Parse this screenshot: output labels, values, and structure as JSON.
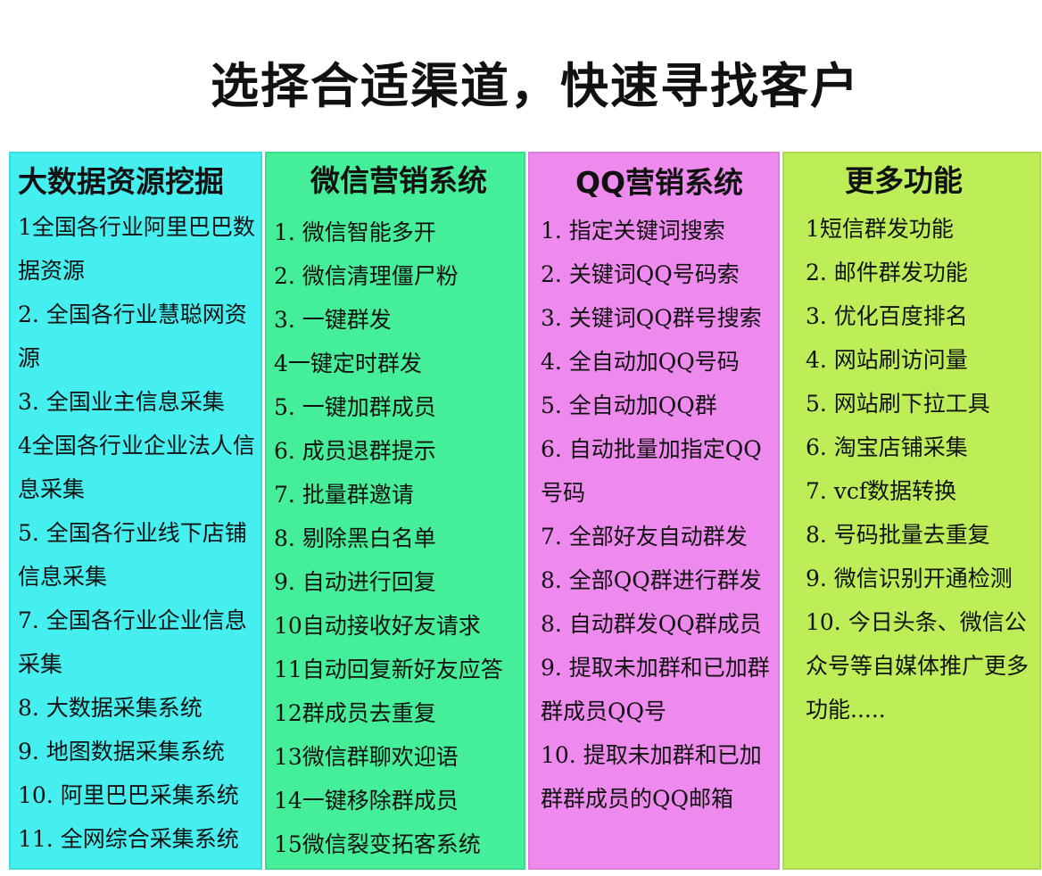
{
  "title": "选择合适渠道，快速寻找客户",
  "columns": [
    {
      "heading": "大数据资源挖掘",
      "color": "#45eff0",
      "items": [
        "1全国各行业阿里巴巴数据资源",
        "2. 全国各行业慧聪网资源",
        "3. 全国业主信息采集",
        "4全国各行业企业法人信息采集",
        "5. 全国各行业线下店铺信息采集",
        "7. 全国各行业企业信息采集",
        "8. 大数据采集系统",
        "9. 地图数据采集系统",
        "10. 阿里巴巴采集系统",
        "11. 全网综合采集系统"
      ]
    },
    {
      "heading": "微信营销系统",
      "color": "#45ee98",
      "items": [
        "1. 微信智能多开",
        "2. 微信清理僵尸粉",
        "3. 一键群发",
        "4一键定时群发",
        "5. 一键加群成员",
        "6. 成员退群提示",
        "7. 批量群邀请",
        "8. 剔除黑白名单",
        "9. 自动进行回复",
        "10自动接收好友请求",
        "11自动回复新好友应答",
        "12群成员去重复",
        "13微信群聊欢迎语",
        "14一键移除群成员",
        "15微信裂变拓客系统"
      ]
    },
    {
      "heading": "QQ营销系统",
      "color": "#ee8aee",
      "items": [
        "1. 指定关键词搜索",
        "2. 关键词QQ号码索",
        "3. 关键词QQ群号搜索",
        "4. 全自动加QQ号码",
        "5. 全自动加QQ群",
        "6. 自动批量加指定QQ号码",
        "7. 全部好友自动群发",
        "8. 全部QQ群进行群发",
        "8. 自动群发QQ群成员",
        "9. 提取未加群和已加群群成员QQ号",
        "10. 提取未加群和已加群群成员的QQ邮箱"
      ]
    },
    {
      "heading": "更多功能",
      "color": "#bdee58",
      "items": [
        "1短信群发功能",
        "2. 邮件群发功能",
        "3. 优化百度排名",
        "4. 网站刷访问量",
        "5. 网站刷下拉工具",
        "6. 淘宝店铺采集",
        "7. vcf数据转换",
        "8. 号码批量去重复",
        "9. 微信识别开通检测",
        "10. 今日头条、微信公众号等自媒体推广更多功能....."
      ]
    }
  ]
}
